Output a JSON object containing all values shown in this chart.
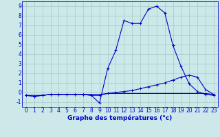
{
  "xlabel": "Graphe des températures (°c)",
  "x": [
    0,
    1,
    2,
    3,
    4,
    5,
    6,
    7,
    8,
    9,
    10,
    11,
    12,
    13,
    14,
    15,
    16,
    17,
    18,
    19,
    20,
    21,
    22,
    23
  ],
  "line1": [
    -0.3,
    -0.4,
    -0.3,
    -0.2,
    -0.2,
    -0.2,
    -0.2,
    -0.2,
    -0.3,
    -1.1,
    2.5,
    4.4,
    7.5,
    7.2,
    7.2,
    8.7,
    9.0,
    8.3,
    4.9,
    2.7,
    0.9,
    0.1,
    -0.2,
    -0.3
  ],
  "line2": [
    -0.3,
    -0.4,
    -0.3,
    -0.2,
    -0.2,
    -0.2,
    -0.2,
    -0.2,
    -0.3,
    -0.3,
    -0.1,
    0.0,
    0.1,
    0.2,
    0.4,
    0.6,
    0.8,
    1.0,
    1.3,
    1.6,
    1.8,
    1.6,
    0.3,
    -0.2
  ],
  "line3": [
    -0.3,
    -0.3,
    -0.3,
    -0.2,
    -0.2,
    -0.2,
    -0.2,
    -0.2,
    -0.2,
    -0.2,
    -0.1,
    -0.1,
    -0.1,
    -0.1,
    -0.1,
    -0.1,
    -0.1,
    -0.1,
    -0.1,
    -0.1,
    -0.1,
    -0.1,
    -0.1,
    -0.2
  ],
  "ylim": [
    -1.5,
    9.5
  ],
  "xlim": [
    -0.5,
    23.5
  ],
  "yticks": [
    -1,
    0,
    1,
    2,
    3,
    4,
    5,
    6,
    7,
    8,
    9
  ],
  "xticks": [
    0,
    1,
    2,
    3,
    4,
    5,
    6,
    7,
    8,
    9,
    10,
    11,
    12,
    13,
    14,
    15,
    16,
    17,
    18,
    19,
    20,
    21,
    22,
    23
  ],
  "line_color": "#0000cc",
  "bg_color": "#cce8e8",
  "grid_color": "#a8c8c8",
  "marker": "+"
}
